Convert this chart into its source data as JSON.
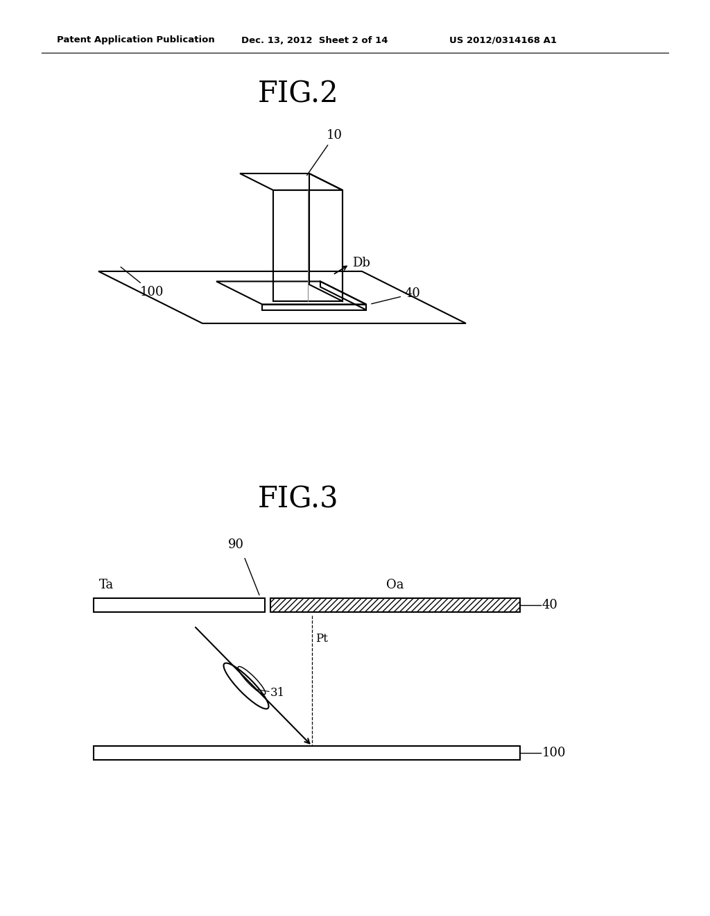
{
  "bg_color": "#ffffff",
  "line_color": "#000000",
  "header_text": "Patent Application Publication",
  "header_date": "Dec. 13, 2012  Sheet 2 of 14",
  "header_patent": "US 2012/0314168 A1",
  "fig2_title": "FIG.2",
  "fig3_title": "FIG.3",
  "label_10": "10",
  "label_40_fig2": "40",
  "label_100_fig2": "100",
  "label_Db": "Db",
  "label_Ta": "Ta",
  "label_Oa": "Oa",
  "label_90": "90",
  "label_40_fig3": "40",
  "label_Pt": "Pt",
  "label_31": "31",
  "label_100_fig3": "100"
}
